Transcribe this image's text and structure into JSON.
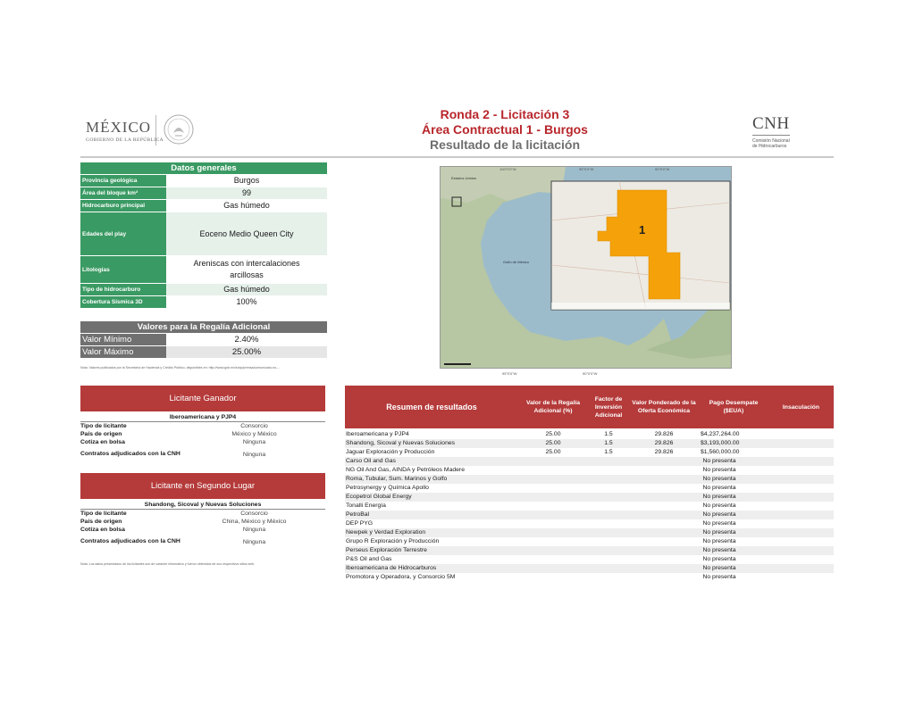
{
  "header": {
    "mexico_logo": "MÉXICO",
    "mexico_sub": "GOBIERNO DE LA REPÚBLICA",
    "cnh_logo": "CNH",
    "cnh_sub_1": "Comisión Nacional",
    "cnh_sub_2": "de Hidrocarburos",
    "title_1": "Ronda 2 - Licitación 3",
    "title_2": "Área Contractual 1 - Burgos",
    "title_3": "Resultado de la licitación"
  },
  "general": {
    "heading": "Datos generales",
    "rows": [
      {
        "label": "Provincia geológica",
        "value": "Burgos"
      },
      {
        "label": "Área del bloque km²",
        "value": "99"
      },
      {
        "label": "Hidrocarburo principal",
        "value": "Gas húmedo"
      },
      {
        "label": "Edades del play",
        "value": "Eoceno Medio Queen City"
      },
      {
        "label": "Litologías",
        "value": "Areniscas con intercalaciones arcillosas"
      },
      {
        "label": "Tipo de hidrocarburo",
        "value": "Gas húmedo"
      },
      {
        "label": "Cobertura Sísmica 3D",
        "value": "100%"
      }
    ]
  },
  "royalty": {
    "heading": "Valores para la Regalía Adicional",
    "min_label": "Valor Mínimo",
    "min_value": "2.40%",
    "max_label": "Valor Máximo",
    "max_value": "25.00%",
    "note": "Nota: Valores publicados por la Secretaría de Hacienda y Crédito Público, disponibles en: http://www.gob.mx/shcp/prensa/comunicado-no-..."
  },
  "map": {
    "block_label": "1",
    "state_1": "Tamaulipas",
    "state_2": "Nuevo León",
    "gulf": "Golfo de México",
    "usa": "Estados Unidos",
    "top_coords": [
      "100°0'0\"W",
      "95°0'0\"W",
      "90°0'0\"W"
    ],
    "bottom_coords": [
      "95°0'0\"W",
      "90°0'0\"W"
    ]
  },
  "winner": {
    "heading": "Licitante Ganador",
    "name": "Iberoamericana y PJP4",
    "fields": [
      {
        "k": "Tipo de licitante",
        "v": "Consorcio"
      },
      {
        "k": "País de origen",
        "v": "México y México"
      },
      {
        "k": "Cotiza en bolsa",
        "v": "Ninguna"
      },
      {
        "k": "Contratos adjudicados con la CNH",
        "v": "Ninguna"
      }
    ]
  },
  "second": {
    "heading": "Licitante en Segundo Lugar",
    "name": "Shandong, Sicoval y Nuevas Soluciones",
    "fields": [
      {
        "k": "Tipo de licitante",
        "v": "Consorcio"
      },
      {
        "k": "País de origen",
        "v": "China, México y México"
      },
      {
        "k": "Cotiza en bolsa",
        "v": "Ninguna"
      },
      {
        "k": "Contratos adjudicados con la CNH",
        "v": "Ninguna"
      }
    ],
    "note": "Nota: Los datos presentados de los licitantes son de carácter informativo y fueron obtenidos de sus respectivos sitios web."
  },
  "results": {
    "headers": {
      "name": "Resumen de resultados",
      "royalty": "Valor de la Regalía Adicional (%)",
      "factor": "Factor de Inversión Adicional",
      "weighted": "Valor Ponderado de la Oferta Económica",
      "payment": "Pago Desempate ($EUA)",
      "draw": "Insaculación"
    },
    "rows": [
      {
        "name": "Iberoamericana y PJP4",
        "royalty": "25.00",
        "factor": "1.5",
        "weighted": "29.826",
        "payment": "$4,237,264.00"
      },
      {
        "name": "Shandong, Sicoval y Nuevas Soluciones",
        "royalty": "25.00",
        "factor": "1.5",
        "weighted": "29.826",
        "payment": "$3,193,000.00"
      },
      {
        "name": "Jaguar Exploración y Producción",
        "royalty": "25.00",
        "factor": "1.5",
        "weighted": "29.826",
        "payment": "$1,560,000.00"
      },
      {
        "name": "Carso Oil and Gas",
        "status": "No presenta"
      },
      {
        "name": "NG Oil And Gas, AINDA y Petróleos Madere",
        "status": "No presenta"
      },
      {
        "name": "Roma, Tubular, Sum. Marinos y Golfo",
        "status": "No presenta"
      },
      {
        "name": "Petrosynergy y Química Apollo",
        "status": "No presenta"
      },
      {
        "name": "Ecopetrol Global Energy",
        "status": "No presenta"
      },
      {
        "name": "Tonalli Energía",
        "status": "No presenta"
      },
      {
        "name": "PetroBal",
        "status": "No presenta"
      },
      {
        "name": "DEP PYG",
        "status": "No presenta"
      },
      {
        "name": "Newpek y Verdad Exploration",
        "status": "No presenta"
      },
      {
        "name": "Grupo R Exploración y Producción",
        "status": "No presenta"
      },
      {
        "name": "Perseus Exploración Terrestre",
        "status": "No presenta"
      },
      {
        "name": "P&S Oil and Gas",
        "status": "No presenta"
      },
      {
        "name": "Iberoamericana de Hidrocarburos",
        "status": "No presenta"
      },
      {
        "name": "Promotora y Operadora, y Consorcio 5M",
        "status": "No presenta"
      }
    ]
  }
}
